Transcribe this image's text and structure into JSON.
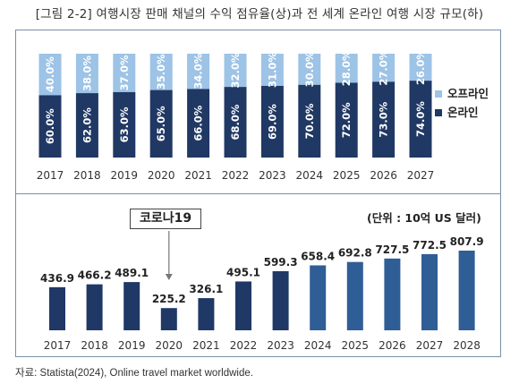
{
  "title": "[그림 2-2] 여행시장 판매 채널의 수익 점유율(상)과 전 세계 온라인 여행 시장 규모(하)",
  "source": "자료: Statista(2024), Online travel market worldwide.",
  "colors": {
    "offline": "#9dc3e6",
    "online": "#203864",
    "market_pre": "#1f3866",
    "market_post": "#2f5d96",
    "frame": "#7b8fa8"
  },
  "chart_data": [
    {
      "type": "bar",
      "stacked": true,
      "percent": true,
      "categories": [
        "2017",
        "2018",
        "2019",
        "2020",
        "2021",
        "2022",
        "2023",
        "2024",
        "2025",
        "2026",
        "2027"
      ],
      "series": [
        {
          "name": "온라인",
          "values": [
            60.0,
            62.0,
            63.0,
            65.0,
            66.0,
            68.0,
            69.0,
            70.0,
            72.0,
            73.0,
            74.0
          ],
          "labels": [
            "60.0%",
            "62.0%",
            "63.0%",
            "65.0%",
            "66.0%",
            "68.0%",
            "69.0%",
            "70.0%",
            "72.0%",
            "73.0%",
            "74.0%"
          ]
        },
        {
          "name": "오프라인",
          "values": [
            40.0,
            38.0,
            37.0,
            35.0,
            34.0,
            32.0,
            31.0,
            30.0,
            28.0,
            27.0,
            26.0
          ],
          "labels": [
            "40.0%",
            "38.0%",
            "37.0%",
            "35.0%",
            "34.0%",
            "32.0%",
            "31.0%",
            "30.0%",
            "28.0%",
            "27.0%",
            "26.0%"
          ]
        }
      ],
      "legend": [
        "오프라인",
        "온라인"
      ],
      "legend_position": "right",
      "ylim": [
        0,
        100
      ]
    },
    {
      "type": "bar",
      "categories": [
        "2017",
        "2018",
        "2019",
        "2020",
        "2021",
        "2022",
        "2023",
        "2024",
        "2025",
        "2026",
        "2027",
        "2028"
      ],
      "values": [
        436.9,
        466.2,
        489.1,
        225.2,
        326.1,
        495.1,
        599.3,
        658.4,
        692.8,
        727.5,
        772.5,
        807.9
      ],
      "value_labels": [
        "436.9",
        "466.2",
        "489.1",
        "225.2",
        "326.1",
        "495.1",
        "599.3",
        "658.4",
        "692.8",
        "727.5",
        "772.5",
        "807.9"
      ],
      "unit_label": "(단위 : 10억 US 달러)",
      "annotation": {
        "text": "코로나19",
        "points_to": "2020"
      }
    }
  ]
}
